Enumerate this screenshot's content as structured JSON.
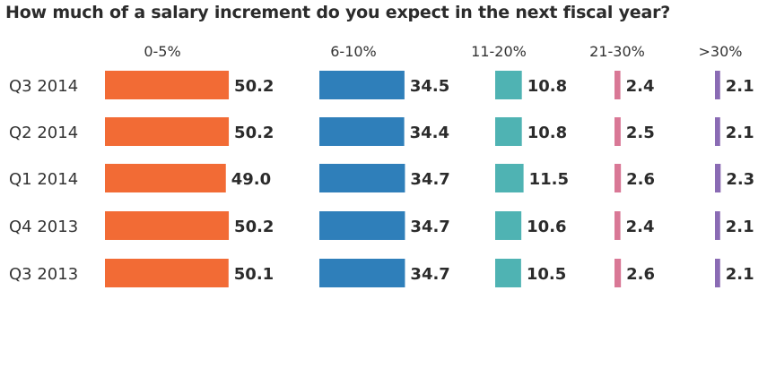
{
  "chart_data": {
    "type": "bar",
    "title": "How much of a salary increment do you expect in the next fiscal year?",
    "categories": [
      "Q3 2014",
      "Q2 2014",
      "Q1 2014",
      "Q4 2013",
      "Q3 2013"
    ],
    "series": [
      {
        "name": "0-5%",
        "color": "#f26b35",
        "values": [
          50.2,
          50.2,
          49.0,
          50.2,
          50.1
        ],
        "labels": [
          "50.2",
          "50.2",
          "49.0",
          "50.2",
          "50.1"
        ]
      },
      {
        "name": "6-10%",
        "color": "#2f7fba",
        "values": [
          34.5,
          34.4,
          34.7,
          34.7,
          34.7
        ],
        "labels": [
          "34.5",
          "34.4",
          "34.7",
          "34.7",
          "34.7"
        ]
      },
      {
        "name": "11-20%",
        "color": "#4fb3b3",
        "values": [
          10.8,
          10.8,
          11.5,
          10.6,
          10.5
        ],
        "labels": [
          "10.8",
          "10.8",
          "11.5",
          "10.6",
          "10.5"
        ]
      },
      {
        "name": "21-30%",
        "color": "#d97896",
        "values": [
          2.4,
          2.5,
          2.6,
          2.4,
          2.6
        ],
        "labels": [
          "2.4",
          "2.5",
          "2.6",
          "2.4",
          "2.6"
        ]
      },
      {
        "name": ">30%",
        "color": "#8a6bb4",
        "values": [
          2.1,
          2.1,
          2.3,
          2.1,
          2.1
        ],
        "labels": [
          "2.1",
          "2.1",
          "2.3",
          "2.1",
          "2.1"
        ]
      }
    ],
    "xlabel": "",
    "ylabel": "",
    "units": "%"
  }
}
